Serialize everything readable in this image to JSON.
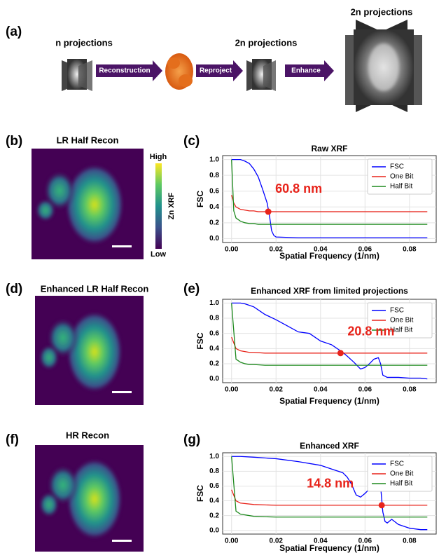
{
  "figure": {
    "panel_labels": [
      "(a)",
      "(b)",
      "(c)",
      "(d)",
      "(e)",
      "(f)",
      "(g)"
    ],
    "diagram": {
      "n_label": "n projections",
      "mid_label": "2n projections",
      "top_label": "2n projections",
      "steps": [
        "Reconstruction",
        "Reproject",
        "Enhance"
      ]
    },
    "maps": [
      {
        "title": "LR Half Recon"
      },
      {
        "title": "Enhanced LR Half Recon"
      },
      {
        "title": "HR Recon"
      }
    ],
    "colorbar": {
      "high": "High",
      "low": "Low",
      "label": "Zn XRF"
    }
  },
  "chart_data": [
    {
      "type": "line",
      "title": "Raw XRF",
      "x_label": "Spatial Frequency (1/nm)",
      "y_label": "FSC",
      "x": [
        0,
        0.001,
        0.002,
        0.004,
        0.006,
        0.008,
        0.01,
        0.012,
        0.014,
        0.016,
        0.017,
        0.018,
        0.019,
        0.02,
        0.03,
        0.04,
        0.05,
        0.06,
        0.07,
        0.08,
        0.088
      ],
      "series": [
        {
          "name": "FSC",
          "color": "#0000ff",
          "values": [
            1.0,
            1.0,
            1.0,
            1.0,
            0.98,
            0.95,
            0.88,
            0.78,
            0.62,
            0.45,
            0.3,
            0.1,
            0.04,
            0.02,
            0.01,
            0.01,
            0.01,
            0.01,
            0.01,
            0.01,
            0.01
          ]
        },
        {
          "name": "One Bit",
          "color": "#e8231a",
          "values": [
            0.55,
            0.45,
            0.4,
            0.37,
            0.36,
            0.35,
            0.35,
            0.34,
            0.34,
            0.34,
            0.34,
            0.34,
            0.34,
            0.34,
            0.34,
            0.34,
            0.34,
            0.34,
            0.34,
            0.34,
            0.34
          ]
        },
        {
          "name": "Half Bit",
          "color": "#1f8a1f",
          "values": [
            1.0,
            0.35,
            0.26,
            0.22,
            0.2,
            0.19,
            0.19,
            0.18,
            0.18,
            0.18,
            0.18,
            0.18,
            0.18,
            0.18,
            0.18,
            0.18,
            0.18,
            0.18,
            0.18,
            0.18,
            0.18
          ]
        }
      ],
      "annotation": {
        "text": "60.8 nm",
        "x": 0.0165,
        "y": 0.34,
        "color": "#e8231a"
      },
      "xlim": [
        -0.004,
        0.092
      ],
      "ylim": [
        -0.05,
        1.05
      ],
      "xticks": [
        {
          "value": 0,
          "label": "0.00"
        },
        0.02,
        0.04,
        0.06,
        0.08
      ],
      "yticks": [
        {
          "value": 0,
          "label": "0.0"
        },
        0.2,
        0.4,
        0.6,
        0.8,
        {
          "value": 1,
          "label": "1.0"
        }
      ],
      "grid": true,
      "legend": "upper right"
    },
    {
      "type": "line",
      "title": "Enhanced XRF from limited projections",
      "x_label": "Spatial Frequency (1/nm)",
      "y_label": "FSC",
      "x": [
        0,
        0.002,
        0.004,
        0.006,
        0.008,
        0.01,
        0.015,
        0.02,
        0.025,
        0.03,
        0.035,
        0.04,
        0.045,
        0.05,
        0.052,
        0.055,
        0.058,
        0.06,
        0.062,
        0.064,
        0.066,
        0.067,
        0.068,
        0.07,
        0.075,
        0.08,
        0.085,
        0.088
      ],
      "series": [
        {
          "name": "FSC",
          "color": "#0000ff",
          "values": [
            1.0,
            1.0,
            1.0,
            0.99,
            0.97,
            0.95,
            0.85,
            0.78,
            0.7,
            0.62,
            0.6,
            0.5,
            0.45,
            0.35,
            0.3,
            0.22,
            0.13,
            0.15,
            0.2,
            0.26,
            0.28,
            0.2,
            0.05,
            0.02,
            0.02,
            0.01,
            0.01,
            0.0
          ]
        },
        {
          "name": "One Bit",
          "color": "#e8231a",
          "values": [
            0.55,
            0.4,
            0.37,
            0.36,
            0.35,
            0.35,
            0.34,
            0.34,
            0.34,
            0.34,
            0.34,
            0.34,
            0.34,
            0.34,
            0.34,
            0.34,
            0.34,
            0.34,
            0.34,
            0.34,
            0.34,
            0.34,
            0.34,
            0.34,
            0.34,
            0.34,
            0.34,
            0.34
          ]
        },
        {
          "name": "Half Bit",
          "color": "#1f8a1f",
          "values": [
            1.0,
            0.26,
            0.22,
            0.2,
            0.19,
            0.19,
            0.18,
            0.18,
            0.18,
            0.18,
            0.18,
            0.18,
            0.18,
            0.18,
            0.18,
            0.18,
            0.18,
            0.18,
            0.18,
            0.18,
            0.18,
            0.18,
            0.18,
            0.18,
            0.18,
            0.18,
            0.18,
            0.18
          ]
        }
      ],
      "annotation": {
        "text": "20.8 nm",
        "x": 0.049,
        "y": 0.34,
        "color": "#e8231a"
      },
      "xlim": [
        -0.004,
        0.092
      ],
      "ylim": [
        -0.05,
        1.05
      ],
      "xticks": [
        {
          "value": 0,
          "label": "0.00"
        },
        0.02,
        0.04,
        0.06,
        0.08
      ],
      "yticks": [
        {
          "value": 0,
          "label": "0.0"
        },
        0.2,
        0.4,
        0.6,
        0.8,
        {
          "value": 1,
          "label": "1.0"
        }
      ],
      "grid": true,
      "legend": "upper right"
    },
    {
      "type": "line",
      "title": "Enhanced XRF",
      "x_label": "Spatial Frequency (1/nm)",
      "y_label": "FSC",
      "x": [
        0,
        0.002,
        0.004,
        0.01,
        0.02,
        0.03,
        0.04,
        0.045,
        0.05,
        0.052,
        0.054,
        0.056,
        0.058,
        0.06,
        0.062,
        0.064,
        0.066,
        0.067,
        0.068,
        0.069,
        0.07,
        0.072,
        0.075,
        0.08,
        0.085,
        0.088
      ],
      "series": [
        {
          "name": "FSC",
          "color": "#0000ff",
          "values": [
            1.0,
            1.0,
            1.0,
            0.99,
            0.97,
            0.93,
            0.88,
            0.83,
            0.78,
            0.72,
            0.62,
            0.48,
            0.45,
            0.5,
            0.56,
            0.6,
            0.64,
            0.6,
            0.25,
            0.12,
            0.1,
            0.15,
            0.08,
            0.03,
            0.01,
            0.01
          ]
        },
        {
          "name": "One Bit",
          "color": "#e8231a",
          "values": [
            0.55,
            0.4,
            0.37,
            0.35,
            0.34,
            0.34,
            0.34,
            0.34,
            0.34,
            0.34,
            0.34,
            0.34,
            0.34,
            0.34,
            0.34,
            0.34,
            0.34,
            0.34,
            0.34,
            0.34,
            0.34,
            0.34,
            0.34,
            0.34,
            0.34,
            0.34
          ]
        },
        {
          "name": "Half Bit",
          "color": "#1f8a1f",
          "values": [
            1.0,
            0.26,
            0.22,
            0.19,
            0.18,
            0.18,
            0.18,
            0.18,
            0.18,
            0.18,
            0.18,
            0.18,
            0.18,
            0.18,
            0.18,
            0.18,
            0.18,
            0.18,
            0.18,
            0.18,
            0.18,
            0.18,
            0.18,
            0.18,
            0.18,
            0.18
          ]
        }
      ],
      "annotation": {
        "text": "14.8 nm",
        "x": 0.0675,
        "y": 0.34,
        "color": "#e8231a"
      },
      "xlim": [
        -0.004,
        0.092
      ],
      "ylim": [
        -0.05,
        1.05
      ],
      "xticks": [
        {
          "value": 0,
          "label": "0.00"
        },
        0.02,
        0.04,
        0.06,
        0.08
      ],
      "yticks": [
        {
          "value": 0,
          "label": "0.0"
        },
        0.2,
        0.4,
        0.6,
        0.8,
        {
          "value": 1,
          "label": "1.0"
        }
      ],
      "grid": true,
      "legend": "upper right"
    }
  ]
}
